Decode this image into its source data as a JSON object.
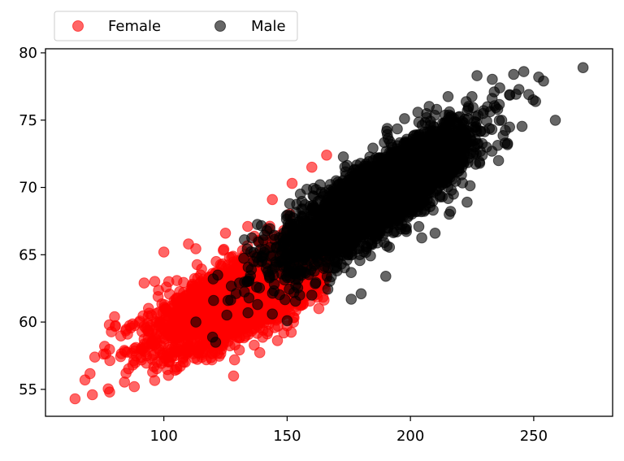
{
  "chart_data": {
    "type": "scatter",
    "title": "",
    "xlabel": "",
    "ylabel": "",
    "xlim": [
      52,
      282
    ],
    "ylim": [
      53,
      80.3
    ],
    "xticks": [
      100,
      150,
      200,
      250
    ],
    "yticks": [
      55,
      60,
      65,
      70,
      75,
      80
    ],
    "grid": false,
    "legend_position": "top-left, outside above plot, two columns",
    "series": [
      {
        "name": "Female",
        "color": "#ff0000",
        "alpha": 0.6,
        "trend": {
          "slope": 0.083,
          "intercept": 51.0
        },
        "x_range": [
          64,
          166
        ],
        "x_center": 135,
        "x_spread": 19,
        "y_spread": 1.4,
        "count": 3200,
        "notable_points": [
          [
            64,
            54.3
          ],
          [
            68,
            55.7
          ],
          [
            71,
            54.6
          ],
          [
            72,
            57.4
          ],
          [
            76,
            58.2
          ],
          [
            78,
            54.8
          ],
          [
            80,
            60.4
          ],
          [
            84,
            57.9
          ],
          [
            88,
            55.2
          ],
          [
            92,
            62.9
          ],
          [
            95,
            60.5
          ],
          [
            100,
            65.2
          ],
          [
            102,
            63.0
          ],
          [
            110,
            65.8
          ],
          [
            125,
            66.6
          ],
          [
            134,
            67.1
          ],
          [
            144,
            69.1
          ],
          [
            152,
            70.3
          ],
          [
            160,
            71.5
          ],
          [
            166,
            72.4
          ]
        ]
      },
      {
        "name": "Male",
        "color": "#000000",
        "alpha": 0.6,
        "trend": {
          "slope": 0.11,
          "intercept": 48.8
        },
        "x_range": [
          112,
          270
        ],
        "x_center": 187,
        "x_spread": 19,
        "y_spread": 1.4,
        "count": 3400,
        "notable_points": [
          [
            113,
            60.0
          ],
          [
            120,
            63.2
          ],
          [
            121,
            58.5
          ],
          [
            126,
            61.6
          ],
          [
            138,
            61.3
          ],
          [
            144,
            60.6
          ],
          [
            150,
            60.1
          ],
          [
            160,
            62.0
          ],
          [
            176,
            61.7
          ],
          [
            180,
            62.1
          ],
          [
            190,
            63.4
          ],
          [
            210,
            66.6
          ],
          [
            223,
            68.9
          ],
          [
            227,
            78.3
          ],
          [
            234,
            77.1
          ],
          [
            246,
            78.6
          ],
          [
            248,
            76.9
          ],
          [
            252,
            78.2
          ],
          [
            254,
            77.9
          ],
          [
            270,
            78.9
          ]
        ]
      }
    ]
  }
}
